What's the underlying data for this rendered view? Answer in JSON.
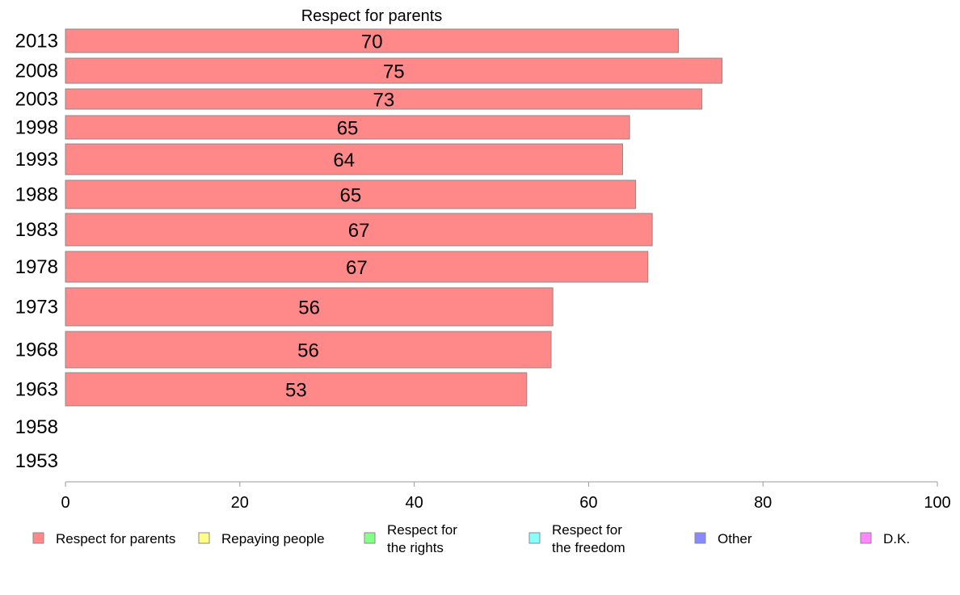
{
  "chart_data": {
    "type": "bar",
    "orientation": "horizontal",
    "title": "Respect for parents",
    "categories": [
      "2013",
      "2008",
      "2003",
      "1998",
      "1993",
      "1988",
      "1983",
      "1978",
      "1973",
      "1968",
      "1963",
      "1958",
      "1953"
    ],
    "series": [
      {
        "name": "Respect for parents",
        "color": "#ff8888",
        "values": [
          70.3,
          75.3,
          73.0,
          64.7,
          63.9,
          65.4,
          67.3,
          66.8,
          55.9,
          55.7,
          52.9,
          null,
          null
        ],
        "labels": [
          "70",
          "75",
          "73",
          "65",
          "64",
          "65",
          "67",
          "67",
          "56",
          "56",
          "53",
          "",
          ""
        ]
      }
    ],
    "xlim": [
      0,
      100
    ],
    "xticks": [
      "0",
      "20",
      "40",
      "60",
      "80",
      "100"
    ],
    "grid": false,
    "legend": {
      "placement": "bottom",
      "entries": [
        {
          "lines": [
            "Respect for parents"
          ],
          "color": "#ff8888"
        },
        {
          "lines": [
            "Repaying people"
          ],
          "color": "#ffff88"
        },
        {
          "lines": [
            "Respect for",
            "the rights"
          ],
          "color": "#88ff88"
        },
        {
          "lines": [
            "Respect for",
            "the freedom"
          ],
          "color": "#88ffff"
        },
        {
          "lines": [
            "Other"
          ],
          "color": "#8888ff"
        },
        {
          "lines": [
            "D.K."
          ],
          "color": "#ff88ff"
        }
      ]
    }
  }
}
